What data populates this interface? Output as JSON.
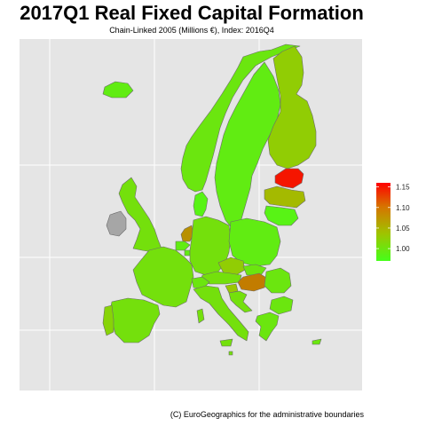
{
  "title": "2017Q1 Real Fixed Capital Formation",
  "subtitle": "Chain-Linked 2005 (Millions €), Index: 2016Q4",
  "caption": "(C) EuroGeographics for the administrative boundaries",
  "colors": {
    "panel_bg": "#e5e5e5",
    "grid": "#ffffff",
    "missing": "#a6a6a6",
    "border": "#6b6b6b",
    "scale_low": "#45ff1a",
    "scale_mid": "#9fc400",
    "scale_high": "#ff0000"
  },
  "legend": {
    "min": 0.97,
    "max": 1.16,
    "ticks": [
      {
        "value": 1.15,
        "label": "1.15"
      },
      {
        "value": 1.1,
        "label": "1.10"
      },
      {
        "value": 1.05,
        "label": "1.05"
      },
      {
        "value": 1.0,
        "label": "1.00"
      }
    ]
  },
  "regions": [
    {
      "name": "Norway",
      "value": 1.01
    },
    {
      "name": "Sweden",
      "value": 1.0
    },
    {
      "name": "Finland",
      "value": 1.05
    },
    {
      "name": "Estonia",
      "value": 1.15
    },
    {
      "name": "Latvia",
      "value": 1.07
    },
    {
      "name": "Lithuania",
      "value": 0.99
    },
    {
      "name": "Denmark",
      "value": 0.99
    },
    {
      "name": "United Kingdom",
      "value": 1.02
    },
    {
      "name": "Ireland",
      "value": null
    },
    {
      "name": "Netherlands",
      "value": 1.09
    },
    {
      "name": "Belgium",
      "value": 1.0
    },
    {
      "name": "Luxembourg",
      "value": 1.0
    },
    {
      "name": "Germany",
      "value": 1.02
    },
    {
      "name": "Poland",
      "value": 1.0
    },
    {
      "name": "Czechia",
      "value": 1.05
    },
    {
      "name": "Slovakia",
      "value": 1.01
    },
    {
      "name": "Austria",
      "value": 1.02
    },
    {
      "name": "Hungary",
      "value": 1.1
    },
    {
      "name": "Slovenia",
      "value": 1.06
    },
    {
      "name": "Croatia",
      "value": 1.02
    },
    {
      "name": "Romania",
      "value": 1.01
    },
    {
      "name": "Bulgaria",
      "value": 1.01
    },
    {
      "name": "France",
      "value": 1.02
    },
    {
      "name": "Switzerland",
      "value": 1.01
    },
    {
      "name": "Italy",
      "value": 1.02
    },
    {
      "name": "Spain",
      "value": 1.02
    },
    {
      "name": "Portugal",
      "value": 1.04
    },
    {
      "name": "Greece",
      "value": 1.01
    },
    {
      "name": "Cyprus",
      "value": 1.01
    },
    {
      "name": "Malta",
      "value": 1.02
    },
    {
      "name": "Iceland",
      "value": 1.0
    }
  ]
}
